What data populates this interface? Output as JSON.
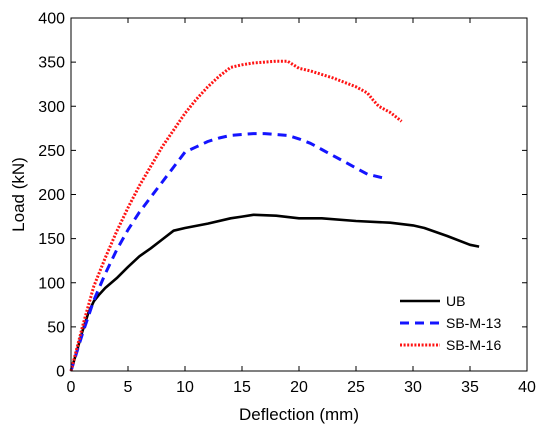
{
  "chart_data": {
    "type": "line",
    "title": "",
    "xlabel": "Deflection (mm)",
    "ylabel": "Load (kN)",
    "xlim": [
      0,
      40
    ],
    "ylim": [
      0,
      400
    ],
    "xticks": [
      0,
      5,
      10,
      15,
      20,
      25,
      30,
      35,
      40
    ],
    "yticks": [
      0,
      50,
      100,
      150,
      200,
      250,
      300,
      350,
      400
    ],
    "grid": false,
    "legend_position": "bottom-right",
    "series": [
      {
        "name": "UB",
        "color": "#000000",
        "style": "solid",
        "x": [
          0,
          0.5,
          1,
          1.5,
          2,
          2.5,
          3,
          4,
          5,
          6,
          7,
          8,
          9,
          10,
          12,
          14,
          15,
          16,
          18,
          20,
          22,
          25,
          28,
          30,
          31,
          33,
          35,
          35.8
        ],
        "y": [
          0,
          22,
          45,
          65,
          79,
          87,
          94,
          105,
          118,
          130,
          139,
          149,
          159,
          162,
          167,
          173,
          175,
          177,
          176,
          173,
          173,
          170,
          168,
          165,
          162,
          153,
          143,
          141
        ]
      },
      {
        "name": "SB-M-13",
        "color": "#1414ff",
        "style": "dashed",
        "x": [
          0,
          1,
          2,
          3,
          4,
          5,
          6,
          7,
          8,
          9,
          10,
          11,
          12,
          13,
          14,
          15,
          16,
          17,
          18,
          19,
          20,
          21,
          22,
          23,
          24,
          25,
          26,
          27.3
        ],
        "y": [
          0,
          42,
          80,
          110,
          137,
          160,
          180,
          197,
          214,
          231,
          248,
          254,
          260,
          264,
          267,
          268,
          269,
          269,
          268,
          267,
          263,
          258,
          251,
          244,
          237,
          230,
          223,
          219
        ]
      },
      {
        "name": "SB-M-16",
        "color": "#ff1414",
        "style": "dotted",
        "x": [
          0,
          1,
          2,
          3,
          4,
          5,
          6,
          7,
          8,
          9,
          10,
          11,
          12,
          13,
          14,
          15,
          16,
          17,
          18,
          19,
          20,
          21,
          22,
          23,
          24,
          25,
          26,
          26.5,
          27,
          28,
          29
        ],
        "y": [
          0,
          50,
          96,
          128,
          158,
          185,
          210,
          232,
          254,
          273,
          292,
          308,
          322,
          334,
          344,
          347,
          349,
          350,
          351,
          351,
          343,
          340,
          336,
          332,
          327,
          322,
          315,
          307,
          300,
          293,
          283
        ]
      }
    ]
  }
}
